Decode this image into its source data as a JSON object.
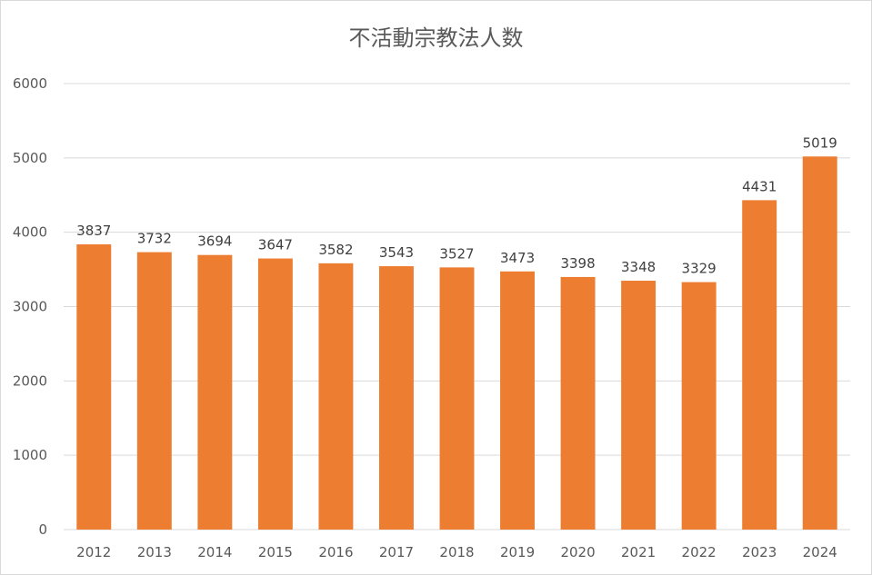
{
  "chart_data": {
    "type": "bar",
    "title": "不活動宗教法人数",
    "categories": [
      "2012",
      "2013",
      "2014",
      "2015",
      "2016",
      "2017",
      "2018",
      "2019",
      "2020",
      "2021",
      "2022",
      "2023",
      "2024"
    ],
    "values": [
      3837,
      3732,
      3694,
      3647,
      3582,
      3543,
      3527,
      3473,
      3398,
      3348,
      3329,
      4431,
      5019
    ],
    "ylim": [
      0,
      6000
    ],
    "yticks": [
      0,
      1000,
      2000,
      3000,
      4000,
      5000,
      6000
    ],
    "grid": true,
    "legend": "none",
    "bar_color": "#ED7D31",
    "grid_color": "#d9d9d9"
  }
}
